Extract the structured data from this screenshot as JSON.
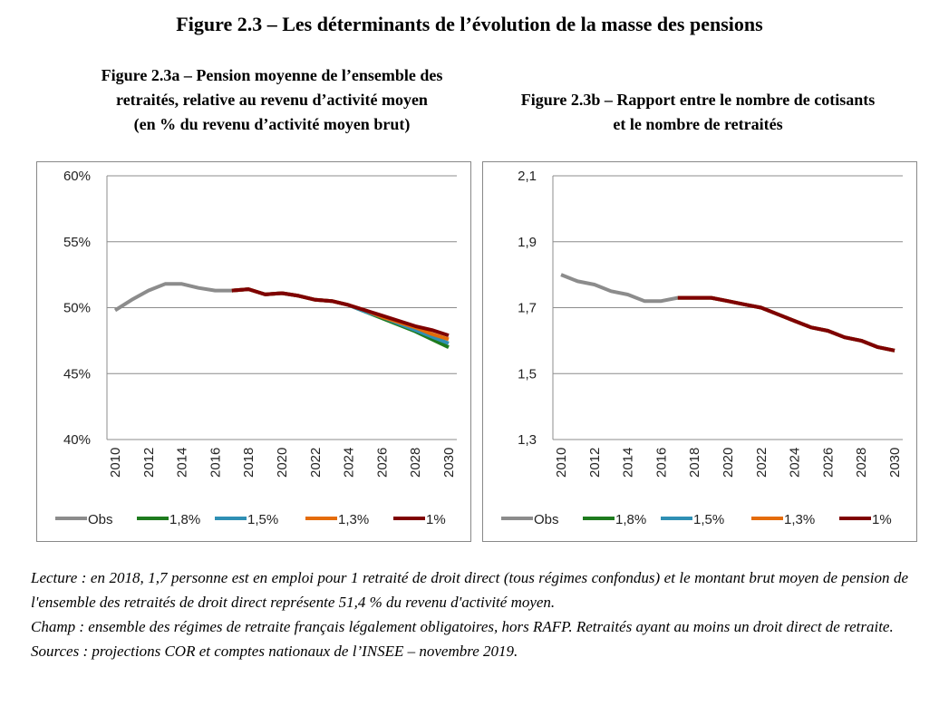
{
  "title": "Figure 2.3 – Les déterminants de l’évolution de la masse des pensions",
  "colors": {
    "Obs": "#8c8c8c",
    "1,8%": "#1e7b1e",
    "1,5%": "#2f8fb4",
    "1,3%": "#e46c0a",
    "1%": "#7f0000"
  },
  "chart_data": [
    {
      "type": "line",
      "title": "Figure 2.3a – Pension moyenne de l’ensemble des retraités, relative au revenu d’activité moyen (en % du revenu d’activité moyen brut)",
      "title_lines": [
        "Figure 2.3a – Pension moyenne de l’ensemble des",
        "retraités, relative au revenu d’activité moyen",
        "(en % du revenu d’activité moyen brut)"
      ],
      "x": [
        2010,
        2011,
        2012,
        2013,
        2014,
        2015,
        2016,
        2017,
        2018,
        2019,
        2020,
        2021,
        2022,
        2023,
        2024,
        2025,
        2026,
        2027,
        2028,
        2029,
        2030
      ],
      "xticks": [
        "2010",
        "2012",
        "2014",
        "2016",
        "2018",
        "2020",
        "2022",
        "2024",
        "2026",
        "2028",
        "2030"
      ],
      "ylim": [
        40,
        60
      ],
      "yticks": [
        "40%",
        "45%",
        "50%",
        "55%",
        "60%"
      ],
      "grid": true,
      "legend": "bottom",
      "series": [
        {
          "name": "Obs",
          "values": [
            49.8,
            50.6,
            51.3,
            51.8,
            51.8,
            51.5,
            51.3,
            51.3,
            null,
            null,
            null,
            null,
            null,
            null,
            null,
            null,
            null,
            null,
            null,
            null,
            null
          ]
        },
        {
          "name": "1,8%",
          "values": [
            null,
            null,
            null,
            null,
            null,
            null,
            null,
            51.3,
            51.4,
            51.0,
            51.1,
            50.9,
            50.6,
            50.5,
            50.2,
            49.7,
            49.2,
            48.7,
            48.2,
            47.6,
            47.0
          ]
        },
        {
          "name": "1,5%",
          "values": [
            null,
            null,
            null,
            null,
            null,
            null,
            null,
            51.3,
            51.4,
            51.0,
            51.1,
            50.9,
            50.6,
            50.5,
            50.2,
            49.7,
            49.3,
            48.8,
            48.3,
            47.8,
            47.3
          ]
        },
        {
          "name": "1,3%",
          "values": [
            null,
            null,
            null,
            null,
            null,
            null,
            null,
            51.3,
            51.4,
            51.0,
            51.1,
            50.9,
            50.6,
            50.5,
            50.2,
            49.8,
            49.3,
            48.9,
            48.5,
            48.0,
            47.6
          ]
        },
        {
          "name": "1%",
          "values": [
            null,
            null,
            null,
            null,
            null,
            null,
            null,
            51.3,
            51.4,
            51.0,
            51.1,
            50.9,
            50.6,
            50.5,
            50.2,
            49.8,
            49.4,
            49.0,
            48.6,
            48.3,
            47.9
          ]
        }
      ]
    },
    {
      "type": "line",
      "title": "Figure 2.3b – Rapport entre le nombre de cotisants et le nombre de retraités",
      "title_lines": [
        "Figure 2.3b – Rapport entre le nombre de cotisants",
        "et le nombre de retraités"
      ],
      "x": [
        2010,
        2011,
        2012,
        2013,
        2014,
        2015,
        2016,
        2017,
        2018,
        2019,
        2020,
        2021,
        2022,
        2023,
        2024,
        2025,
        2026,
        2027,
        2028,
        2029,
        2030
      ],
      "xticks": [
        "2010",
        "2012",
        "2014",
        "2016",
        "2018",
        "2020",
        "2022",
        "2024",
        "2026",
        "2028",
        "2030"
      ],
      "ylim": [
        1.3,
        2.1
      ],
      "yticks": [
        "1,3",
        "1,5",
        "1,7",
        "1,9",
        "2,1"
      ],
      "grid": true,
      "legend": "bottom",
      "series": [
        {
          "name": "Obs",
          "values": [
            1.8,
            1.78,
            1.77,
            1.75,
            1.74,
            1.72,
            1.72,
            1.73,
            null,
            null,
            null,
            null,
            null,
            null,
            null,
            null,
            null,
            null,
            null,
            null,
            null
          ]
        },
        {
          "name": "1,8%",
          "values": [
            null,
            null,
            null,
            null,
            null,
            null,
            null,
            1.73,
            1.73,
            1.73,
            1.72,
            1.71,
            1.7,
            1.68,
            1.66,
            1.64,
            1.63,
            1.61,
            1.6,
            1.58,
            1.57
          ]
        },
        {
          "name": "1,5%",
          "values": [
            null,
            null,
            null,
            null,
            null,
            null,
            null,
            1.73,
            1.73,
            1.73,
            1.72,
            1.71,
            1.7,
            1.68,
            1.66,
            1.64,
            1.63,
            1.61,
            1.6,
            1.58,
            1.57
          ]
        },
        {
          "name": "1,3%",
          "values": [
            null,
            null,
            null,
            null,
            null,
            null,
            null,
            1.73,
            1.73,
            1.73,
            1.72,
            1.71,
            1.7,
            1.68,
            1.66,
            1.64,
            1.63,
            1.61,
            1.6,
            1.58,
            1.57
          ]
        },
        {
          "name": "1%",
          "values": [
            null,
            null,
            null,
            null,
            null,
            null,
            null,
            1.73,
            1.73,
            1.73,
            1.72,
            1.71,
            1.7,
            1.68,
            1.66,
            1.64,
            1.63,
            1.61,
            1.6,
            1.58,
            1.57
          ]
        }
      ]
    }
  ],
  "notes": [
    "Lecture : en 2018, 1,7 personne est en emploi pour 1 retraité de droit direct (tous régimes confondus) et le montant brut moyen de pension de l'ensemble des retraités de droit direct représente 51,4 % du revenu d'activité moyen.",
    "Champ : ensemble des régimes de retraite français légalement obligatoires, hors RAFP. Retraités ayant au moins un droit direct de retraite.",
    "Sources : projections COR et comptes nationaux de l’INSEE – novembre 2019."
  ]
}
